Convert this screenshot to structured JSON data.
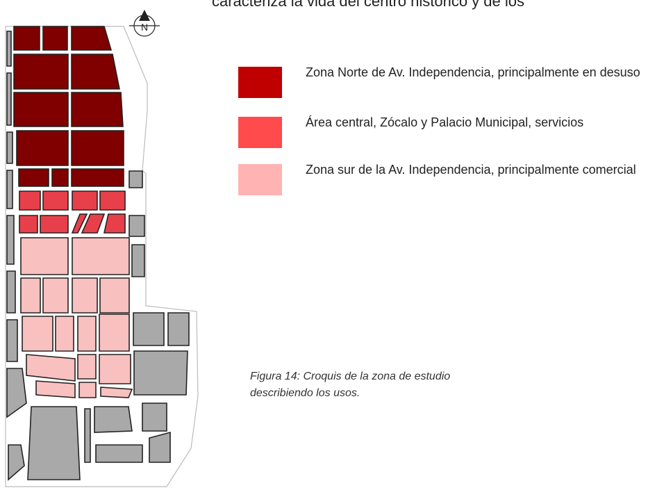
{
  "header": {
    "text": "caracteriza la vida del centro histórico y de los"
  },
  "compass": {
    "label": "N"
  },
  "legend": [
    {
      "label": "Zona Norte de Av. Independencia, principalmente en desuso"
    },
    {
      "label": "Área central, Zócalo y Palacio Municipal, servicios"
    },
    {
      "label": "Zona sur de la Av. Independencia, principalmente comercial"
    }
  ],
  "caption": {
    "text": "Figura 14: Croquis de la zona de estudio describiendo los usos."
  }
}
